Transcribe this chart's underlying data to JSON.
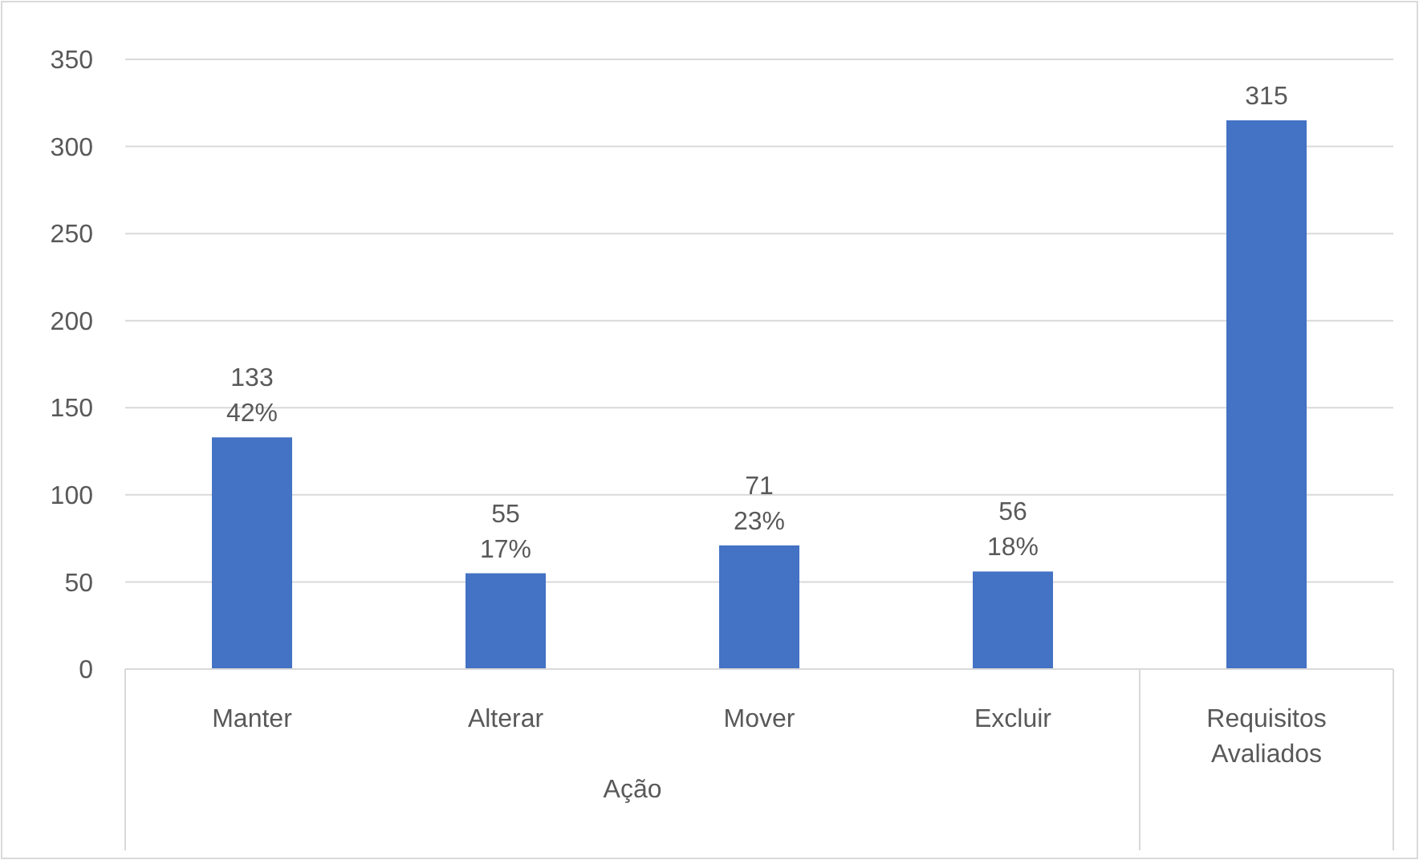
{
  "chart_data": {
    "type": "bar",
    "categories": [
      "Manter",
      "Alterar",
      "Mover",
      "Excluir",
      "Requisitos Avaliados"
    ],
    "values": [
      133,
      55,
      71,
      56,
      315
    ],
    "color": "#4472c4",
    "value_labels": [
      "133\n42%",
      "55\n17%",
      "71\n23%",
      "56\n18%",
      "315"
    ],
    "ylim": [
      0,
      350
    ],
    "yticks": [
      0,
      50,
      100,
      150,
      200,
      250,
      300,
      350
    ],
    "grid": "y",
    "annotations": [
      "Ação"
    ]
  }
}
